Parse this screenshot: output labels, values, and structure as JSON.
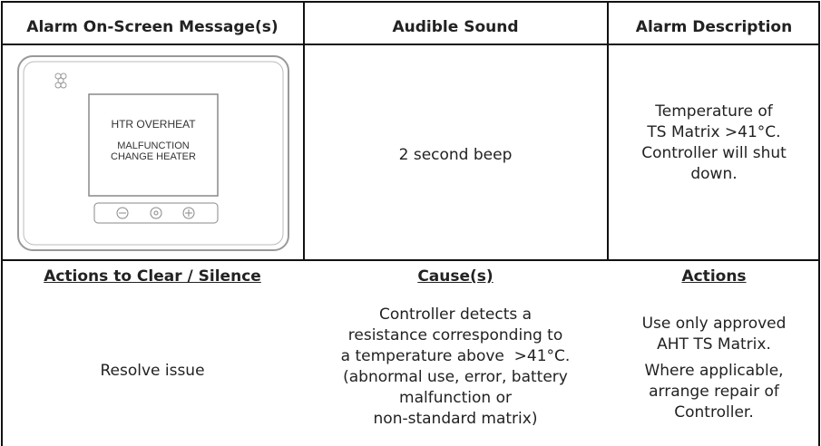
{
  "table": {
    "header": [
      "Alarm On-Screen Message(s)",
      "Audible Sound",
      "Alarm Description"
    ],
    "screen": [
      "HTR OVERHEAT",
      "MALFUNCTION",
      "CHANGE HEATER"
    ],
    "sound": "2 second beep",
    "description": [
      "Temperature of",
      "TS Matrix >41°C.",
      "Controller will shut",
      "down."
    ],
    "lower_header": [
      "Actions to Clear / Silence",
      "Cause(s)",
      "Actions"
    ],
    "clear": "Resolve issue",
    "cause": [
      "Controller detects a",
      "resistance corresponding to",
      "a temperature above  >41°C.",
      "(abnormal use, error, battery",
      "malfunction or",
      "non-standard matrix)"
    ],
    "actions": [
      [
        "Use only approved",
        "AHT TS Matrix."
      ],
      [
        "Where applicable,",
        "arrange repair of",
        "Controller."
      ]
    ]
  }
}
